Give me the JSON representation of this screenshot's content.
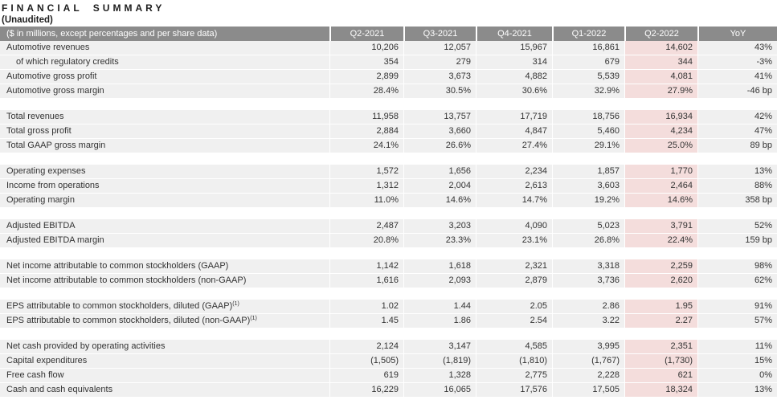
{
  "title": "FINANCIAL SUMMARY",
  "subtitle": "(Unaudited)",
  "colors": {
    "header_bg": "#8b8b8b",
    "header_text": "#ffffff",
    "row_bg": "#f0f0f0",
    "highlight_bg": "#f4dddc",
    "body_text": "#333333"
  },
  "table": {
    "caption": "($ in millions, except percentages and per share data)",
    "columns": [
      "Q2-2021",
      "Q3-2021",
      "Q4-2021",
      "Q1-2022",
      "Q2-2022",
      "YoY"
    ],
    "highlight_column": "Q2-2022",
    "highlight_column_index": 4,
    "sections": [
      {
        "rows": [
          {
            "label": "Automotive revenues",
            "indent": 0,
            "values": [
              "10,206",
              "12,057",
              "15,967",
              "16,861",
              "14,602",
              "43%"
            ]
          },
          {
            "label": "of which regulatory credits",
            "indent": 1,
            "values": [
              "354",
              "279",
              "314",
              "679",
              "344",
              "-3%"
            ]
          },
          {
            "label": "Automotive gross profit",
            "indent": 0,
            "values": [
              "2,899",
              "3,673",
              "4,882",
              "5,539",
              "4,081",
              "41%"
            ]
          },
          {
            "label": "Automotive gross margin",
            "indent": 0,
            "values": [
              "28.4%",
              "30.5%",
              "30.6%",
              "32.9%",
              "27.9%",
              "-46 bp"
            ]
          }
        ]
      },
      {
        "rows": [
          {
            "label": "Total revenues",
            "indent": 0,
            "values": [
              "11,958",
              "13,757",
              "17,719",
              "18,756",
              "16,934",
              "42%"
            ]
          },
          {
            "label": "Total gross profit",
            "indent": 0,
            "values": [
              "2,884",
              "3,660",
              "4,847",
              "5,460",
              "4,234",
              "47%"
            ]
          },
          {
            "label": "Total GAAP gross margin",
            "indent": 0,
            "values": [
              "24.1%",
              "26.6%",
              "27.4%",
              "29.1%",
              "25.0%",
              "89 bp"
            ]
          }
        ]
      },
      {
        "rows": [
          {
            "label": "Operating expenses",
            "indent": 0,
            "values": [
              "1,572",
              "1,656",
              "2,234",
              "1,857",
              "1,770",
              "13%"
            ]
          },
          {
            "label": "Income from operations",
            "indent": 0,
            "values": [
              "1,312",
              "2,004",
              "2,613",
              "3,603",
              "2,464",
              "88%"
            ]
          },
          {
            "label": "Operating margin",
            "indent": 0,
            "values": [
              "11.0%",
              "14.6%",
              "14.7%",
              "19.2%",
              "14.6%",
              "358 bp"
            ]
          }
        ]
      },
      {
        "rows": [
          {
            "label": "Adjusted EBITDA",
            "indent": 0,
            "values": [
              "2,487",
              "3,203",
              "4,090",
              "5,023",
              "3,791",
              "52%"
            ]
          },
          {
            "label": "Adjusted EBITDA margin",
            "indent": 0,
            "values": [
              "20.8%",
              "23.3%",
              "23.1%",
              "26.8%",
              "22.4%",
              "159 bp"
            ]
          }
        ]
      },
      {
        "rows": [
          {
            "label": "Net income attributable to common stockholders (GAAP)",
            "indent": 0,
            "values": [
              "1,142",
              "1,618",
              "2,321",
              "3,318",
              "2,259",
              "98%"
            ]
          },
          {
            "label": "Net income attributable to common stockholders (non-GAAP)",
            "indent": 0,
            "values": [
              "1,616",
              "2,093",
              "2,879",
              "3,736",
              "2,620",
              "62%"
            ]
          }
        ]
      },
      {
        "rows": [
          {
            "label": "EPS attributable to common stockholders, diluted (GAAP)",
            "sup": "(1)",
            "indent": 0,
            "values": [
              "1.02",
              "1.44",
              "2.05",
              "2.86",
              "1.95",
              "91%"
            ]
          },
          {
            "label": "EPS attributable to common stockholders, diluted (non-GAAP)",
            "sup": "(1)",
            "indent": 0,
            "values": [
              "1.45",
              "1.86",
              "2.54",
              "3.22",
              "2.27",
              "57%"
            ]
          }
        ]
      },
      {
        "rows": [
          {
            "label": "Net cash provided by operating activities",
            "indent": 0,
            "values": [
              "2,124",
              "3,147",
              "4,585",
              "3,995",
              "2,351",
              "11%"
            ]
          },
          {
            "label": "Capital expenditures",
            "indent": 0,
            "values": [
              "(1,505)",
              "(1,819)",
              "(1,810)",
              "(1,767)",
              "(1,730)",
              "15%"
            ]
          },
          {
            "label": "Free cash flow",
            "indent": 0,
            "values": [
              "619",
              "1,328",
              "2,775",
              "2,228",
              "621",
              "0%"
            ]
          },
          {
            "label": "Cash and cash equivalents",
            "indent": 0,
            "values": [
              "16,229",
              "16,065",
              "17,576",
              "17,505",
              "18,324",
              "13%"
            ]
          }
        ]
      }
    ]
  }
}
